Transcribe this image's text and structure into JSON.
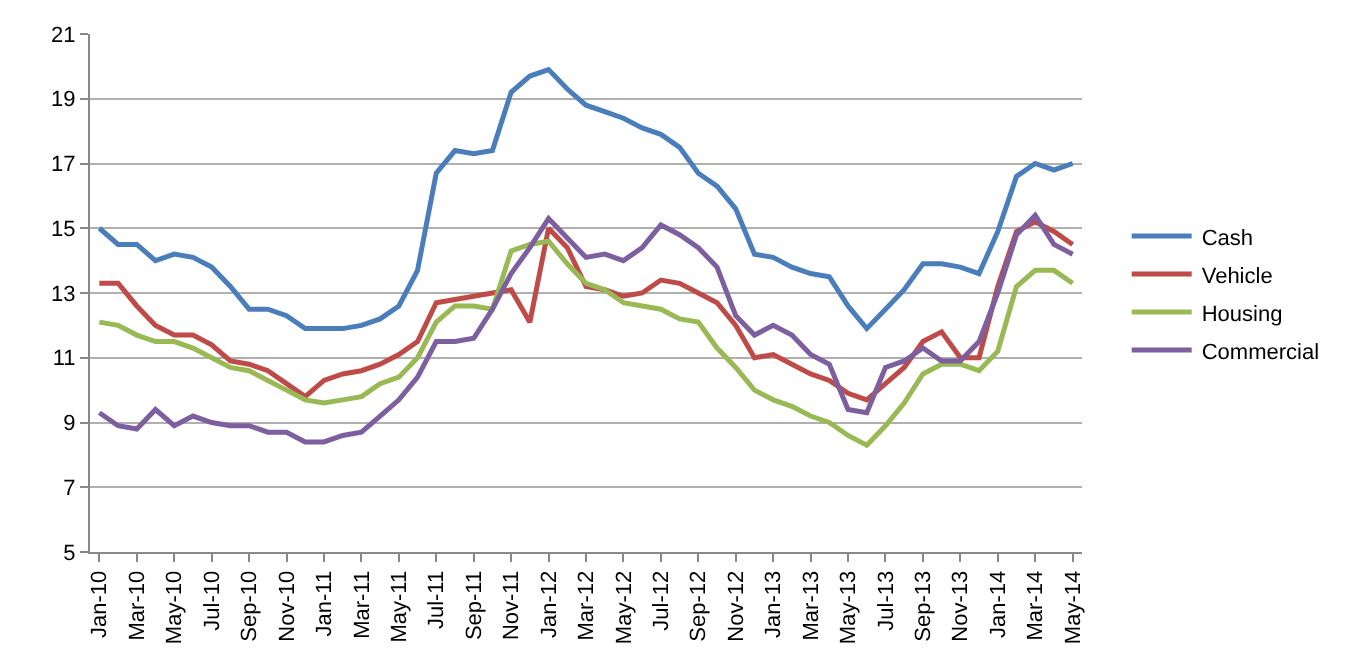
{
  "chart_data": {
    "type": "line",
    "categories": [
      "Jan-10",
      null,
      "Mar-10",
      null,
      "May-10",
      null,
      "Jul-10",
      null,
      "Sep-10",
      null,
      "Nov-10",
      null,
      "Jan-11",
      null,
      "Mar-11",
      null,
      "May-11",
      null,
      "Jul-11",
      null,
      "Sep-11",
      null,
      "Nov-11",
      null,
      "Jan-12",
      null,
      "Mar-12",
      null,
      "May-12",
      null,
      "Jul-12",
      null,
      "Sep-12",
      null,
      "Nov-12",
      null,
      "Jan-13",
      null,
      "Mar-13",
      null,
      "May-13",
      null,
      "Jul-13",
      null,
      "Sep-13",
      null,
      "Nov-13",
      null,
      "Jan-14",
      null,
      "Mar-14",
      null,
      "May-14"
    ],
    "series": [
      {
        "name": "Cash",
        "color": "#4a7ebb",
        "values": [
          15.0,
          14.5,
          14.5,
          14.0,
          14.2,
          14.1,
          13.8,
          13.2,
          12.5,
          12.5,
          12.3,
          11.9,
          11.9,
          11.9,
          12.0,
          12.2,
          12.6,
          13.7,
          16.7,
          17.4,
          17.3,
          17.4,
          19.2,
          19.7,
          19.9,
          19.3,
          18.8,
          18.6,
          18.4,
          18.1,
          17.9,
          17.5,
          16.7,
          16.3,
          15.6,
          14.2,
          14.1,
          13.8,
          13.6,
          13.5,
          12.6,
          11.9,
          12.5,
          13.1,
          13.9,
          13.9,
          13.8,
          13.6,
          14.9,
          16.6,
          17.0,
          16.8,
          17.0
        ]
      },
      {
        "name": "Vehicle",
        "color": "#be4b48",
        "values": [
          13.3,
          13.3,
          12.6,
          12.0,
          11.7,
          11.7,
          11.4,
          10.9,
          10.8,
          10.6,
          10.2,
          9.8,
          10.3,
          10.5,
          10.6,
          10.8,
          11.1,
          11.5,
          12.7,
          12.8,
          12.9,
          13.0,
          13.1,
          12.1,
          15.0,
          14.4,
          13.2,
          13.1,
          12.9,
          13.0,
          13.4,
          13.3,
          13.0,
          12.7,
          12.0,
          11.0,
          11.1,
          10.8,
          10.5,
          10.3,
          9.9,
          9.7,
          10.2,
          10.7,
          11.5,
          11.8,
          11.0,
          11.0,
          13.2,
          14.9,
          15.2,
          14.9,
          14.5
        ]
      },
      {
        "name": "Housing",
        "color": "#98b954",
        "values": [
          12.1,
          12.0,
          11.7,
          11.5,
          11.5,
          11.3,
          11.0,
          10.7,
          10.6,
          10.3,
          10.0,
          9.7,
          9.6,
          9.7,
          9.8,
          10.2,
          10.4,
          11.0,
          12.1,
          12.6,
          12.6,
          12.5,
          14.3,
          14.5,
          14.6,
          13.9,
          13.3,
          13.1,
          12.7,
          12.6,
          12.5,
          12.2,
          12.1,
          11.3,
          10.7,
          10.0,
          9.7,
          9.5,
          9.2,
          9.0,
          8.6,
          8.3,
          8.9,
          9.6,
          10.5,
          10.8,
          10.8,
          10.6,
          11.2,
          13.2,
          13.7,
          13.7,
          13.3
        ]
      },
      {
        "name": "Commercial",
        "color": "#7d5fa0",
        "values": [
          9.3,
          8.9,
          8.8,
          9.4,
          8.9,
          9.2,
          9.0,
          8.9,
          8.9,
          8.7,
          8.7,
          8.4,
          8.4,
          8.6,
          8.7,
          9.2,
          9.7,
          10.4,
          11.5,
          11.5,
          11.6,
          12.5,
          13.6,
          14.4,
          15.3,
          14.7,
          14.1,
          14.2,
          14.0,
          14.4,
          15.1,
          14.8,
          14.4,
          13.8,
          12.3,
          11.7,
          12.0,
          11.7,
          11.1,
          10.8,
          9.4,
          9.3,
          10.7,
          10.9,
          11.3,
          10.9,
          10.9,
          11.5,
          13.0,
          14.8,
          15.4,
          14.5,
          14.2
        ]
      }
    ],
    "ylim": [
      5,
      21
    ],
    "yticks": [
      5,
      7,
      9,
      11,
      13,
      15,
      17,
      19,
      21
    ],
    "grid": "y",
    "legend": "right",
    "marker": "none",
    "line_style": "solid"
  }
}
